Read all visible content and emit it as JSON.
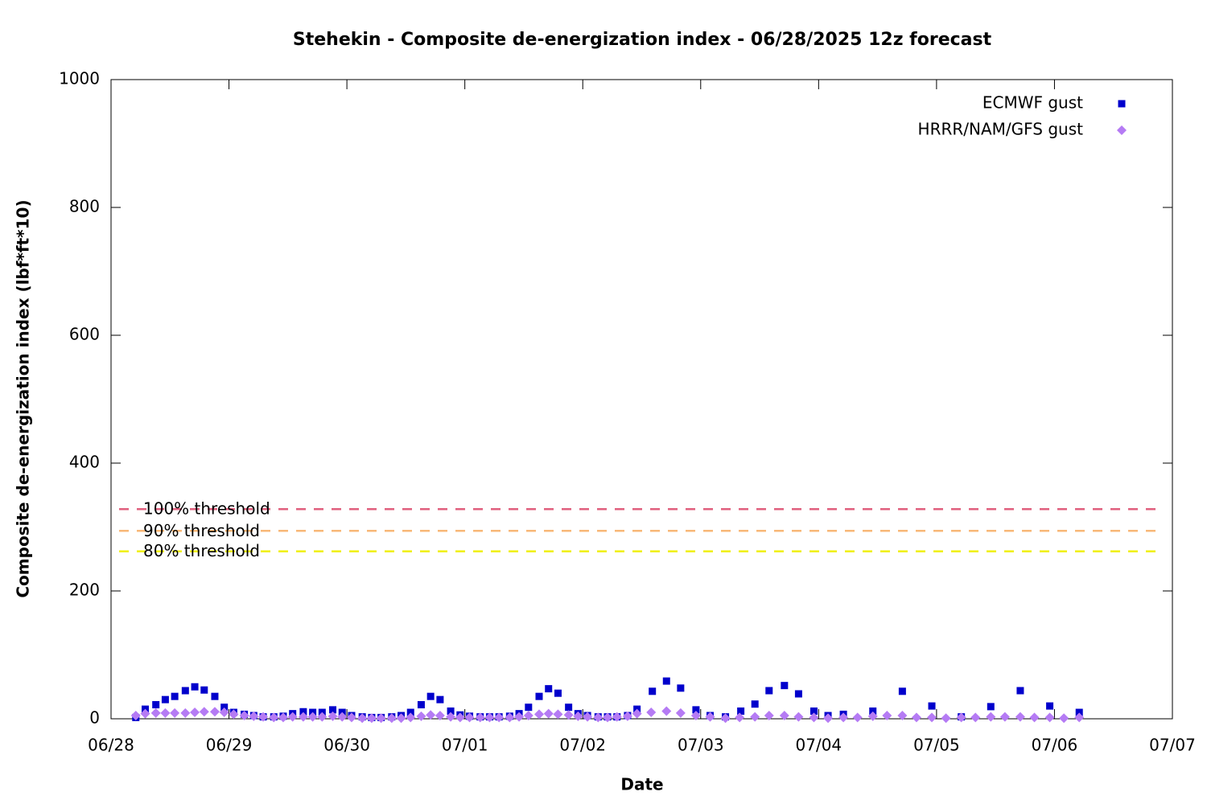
{
  "chart_data": {
    "type": "scatter",
    "title": "Stehekin - Composite de-energization index - 06/28/2025 12z forecast",
    "x_label": "Date",
    "y_label": "Composite de-energization index (lbf*ft*10)",
    "xlim": [
      0,
      9
    ],
    "xticks": [
      {
        "value": 0,
        "label": "06/28"
      },
      {
        "value": 1,
        "label": "06/29"
      },
      {
        "value": 2,
        "label": "06/30"
      },
      {
        "value": 3,
        "label": "07/01"
      },
      {
        "value": 4,
        "label": "07/02"
      },
      {
        "value": 5,
        "label": "07/03"
      },
      {
        "value": 6,
        "label": "07/04"
      },
      {
        "value": 7,
        "label": "07/05"
      },
      {
        "value": 8,
        "label": "07/06"
      },
      {
        "value": 9,
        "label": "07/07"
      }
    ],
    "ylim": [
      0,
      1000
    ],
    "yticks": [
      0,
      200,
      400,
      600,
      800,
      1000
    ],
    "grid": false,
    "legend": "top-right",
    "thresholds": [
      {
        "name": "100% threshold",
        "value": 328,
        "color": "#e0607e"
      },
      {
        "name": "90% threshold",
        "value": 294,
        "color": "#f8b878"
      },
      {
        "name": "80% threshold",
        "value": 262,
        "color": "#f0f000"
      }
    ],
    "series": [
      {
        "name": "ECMWF gust",
        "color": "#0000cc",
        "marker": "square",
        "x": [
          0.21,
          0.29,
          0.38,
          0.46,
          0.54,
          0.63,
          0.71,
          0.79,
          0.88,
          0.96,
          1.04,
          1.13,
          1.21,
          1.29,
          1.38,
          1.46,
          1.54,
          1.63,
          1.71,
          1.79,
          1.88,
          1.96,
          2.04,
          2.13,
          2.21,
          2.29,
          2.38,
          2.46,
          2.54,
          2.63,
          2.71,
          2.79,
          2.88,
          2.96,
          3.04,
          3.13,
          3.21,
          3.29,
          3.38,
          3.46,
          3.54,
          3.63,
          3.71,
          3.79,
          3.88,
          3.96,
          4.04,
          4.13,
          4.21,
          4.29,
          4.38,
          4.46,
          4.59,
          4.71,
          4.83,
          4.96,
          5.08,
          5.21,
          5.34,
          5.46,
          5.58,
          5.71,
          5.83,
          5.96,
          6.08,
          6.21,
          6.46,
          6.71,
          6.96,
          7.21,
          7.46,
          7.71,
          7.96,
          8.21
        ],
        "values": [
          2,
          15,
          22,
          30,
          35,
          44,
          50,
          45,
          35,
          18,
          10,
          7,
          5,
          3,
          3,
          4,
          8,
          11,
          10,
          10,
          14,
          10,
          5,
          3,
          2,
          2,
          3,
          5,
          10,
          22,
          35,
          30,
          12,
          6,
          4,
          3,
          3,
          3,
          4,
          8,
          18,
          35,
          47,
          40,
          18,
          8,
          5,
          3,
          3,
          3,
          5,
          15,
          43,
          59,
          48,
          14,
          5,
          3,
          12,
          23,
          44,
          52,
          39,
          12,
          5,
          7,
          12,
          43,
          20,
          3,
          19,
          44,
          20,
          10
        ]
      },
      {
        "name": "HRRR/NAM/GFS gust",
        "color": "#b57bf4",
        "marker": "diamond",
        "x": [
          0.21,
          0.29,
          0.38,
          0.46,
          0.54,
          0.63,
          0.71,
          0.79,
          0.88,
          0.96,
          1.04,
          1.13,
          1.21,
          1.29,
          1.38,
          1.46,
          1.54,
          1.63,
          1.71,
          1.79,
          1.88,
          1.96,
          2.04,
          2.13,
          2.21,
          2.29,
          2.38,
          2.46,
          2.54,
          2.63,
          2.71,
          2.79,
          2.88,
          2.96,
          3.04,
          3.13,
          3.21,
          3.29,
          3.38,
          3.46,
          3.54,
          3.63,
          3.71,
          3.79,
          3.88,
          3.96,
          4.04,
          4.13,
          4.21,
          4.29,
          4.38,
          4.46,
          4.58,
          4.71,
          4.83,
          4.96,
          5.08,
          5.21,
          5.33,
          5.46,
          5.58,
          5.71,
          5.83,
          5.96,
          6.08,
          6.21,
          6.33,
          6.46,
          6.58,
          6.71,
          6.83,
          6.96,
          7.08,
          7.21,
          7.33,
          7.46,
          7.58,
          7.71,
          7.83,
          7.96,
          8.08,
          8.21
        ],
        "values": [
          5,
          8,
          9,
          9,
          9,
          9,
          10,
          11,
          11,
          10,
          7,
          5,
          4,
          3,
          2,
          2,
          3,
          3,
          3,
          3,
          4,
          3,
          2,
          1,
          1,
          1,
          1,
          1,
          2,
          4,
          6,
          5,
          3,
          2,
          2,
          2,
          2,
          2,
          2,
          3,
          5,
          7,
          8,
          7,
          6,
          4,
          3,
          2,
          2,
          3,
          4,
          8,
          10,
          12,
          9,
          5,
          3,
          1,
          2,
          3,
          5,
          5,
          3,
          2,
          1,
          2,
          2,
          4,
          5,
          5,
          2,
          2,
          1,
          2,
          2,
          3,
          3,
          3,
          2,
          2,
          1,
          2
        ]
      }
    ]
  }
}
